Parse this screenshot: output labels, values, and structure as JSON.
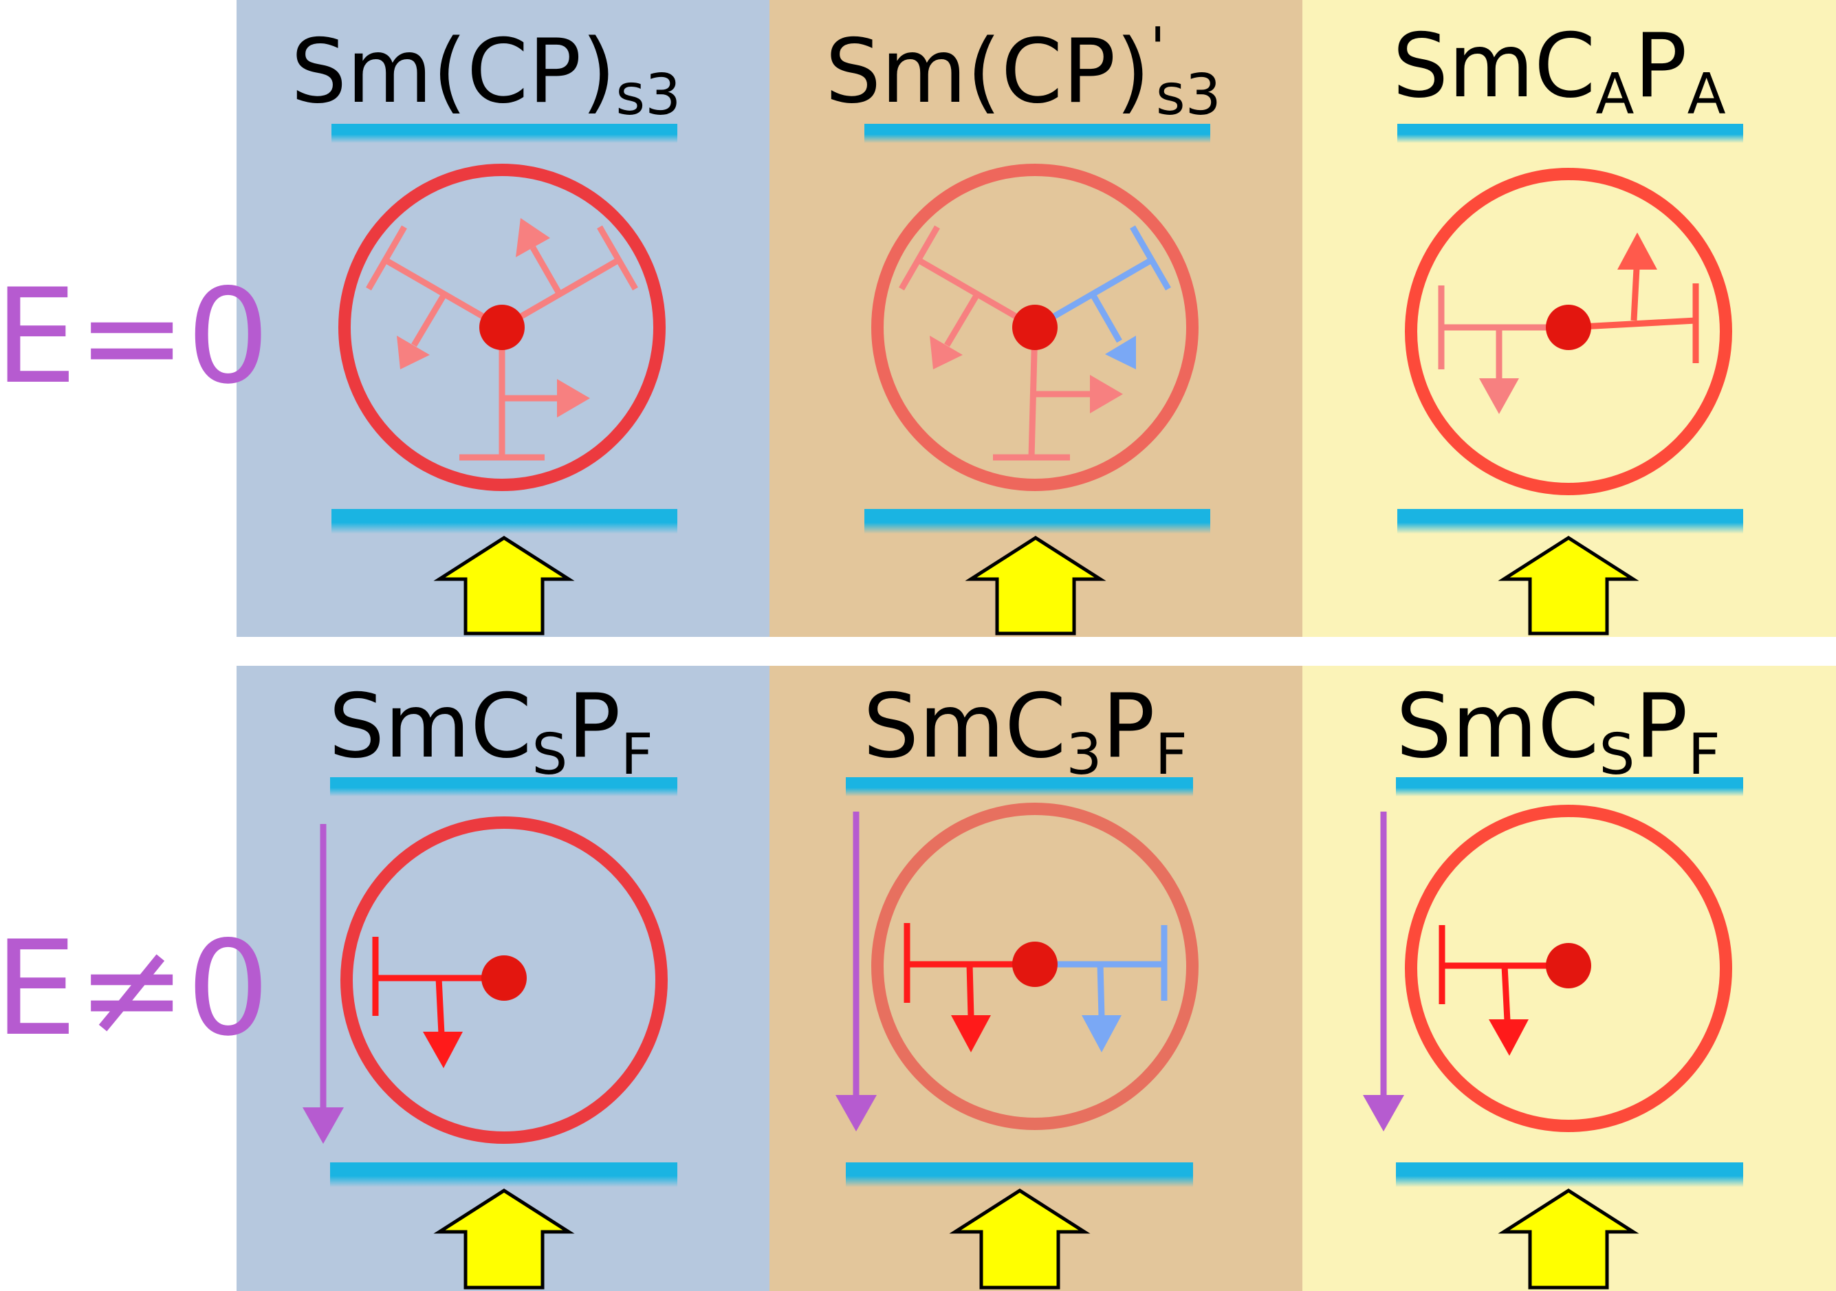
{
  "row_labels": {
    "top": "E=0",
    "bottom": "E≠0"
  },
  "colors": {
    "field_label": "#b65bd0",
    "panel_blue": "#b6c8de",
    "panel_tan": "#e3c69b",
    "panel_yellow": "#fbf3b8",
    "layer_line": "#1ab4e2",
    "ring_red": "#ec3a3f",
    "ring_salmon": "#ee675c",
    "ring_orange": "#fd4a3a",
    "ring_bottom_mid": "#e7705f",
    "molecule_red": "#f78080",
    "molecule_blue": "#7aa8f5",
    "molecule_bright_red": "#ff1a1a",
    "center_dot": "#e3160f",
    "field_arrow": "#b65bd0",
    "big_arrow_fill": "#ffff00",
    "big_arrow_stroke": "#000000"
  },
  "panels_top": [
    {
      "main": "Sm(CP)",
      "prime": "",
      "sub": "s3"
    },
    {
      "main": "Sm(CP)",
      "prime": "'",
      "sub": "s3"
    },
    {
      "parts": [
        {
          "t": "SmC"
        },
        {
          "t": "A",
          "s": true
        },
        {
          "t": "P"
        },
        {
          "t": "A",
          "s": true
        }
      ]
    }
  ],
  "panels_bottom": [
    {
      "parts": [
        {
          "t": "SmC"
        },
        {
          "t": "S",
          "s": true
        },
        {
          "t": "P"
        },
        {
          "t": "F",
          "s": true
        }
      ]
    },
    {
      "parts": [
        {
          "t": "SmC"
        },
        {
          "t": "3",
          "s": true
        },
        {
          "t": "P"
        },
        {
          "t": "F",
          "s": true
        }
      ]
    },
    {
      "parts": [
        {
          "t": "SmC"
        },
        {
          "t": "S",
          "s": true
        },
        {
          "t": "P"
        },
        {
          "t": "F",
          "s": true
        }
      ]
    }
  ]
}
